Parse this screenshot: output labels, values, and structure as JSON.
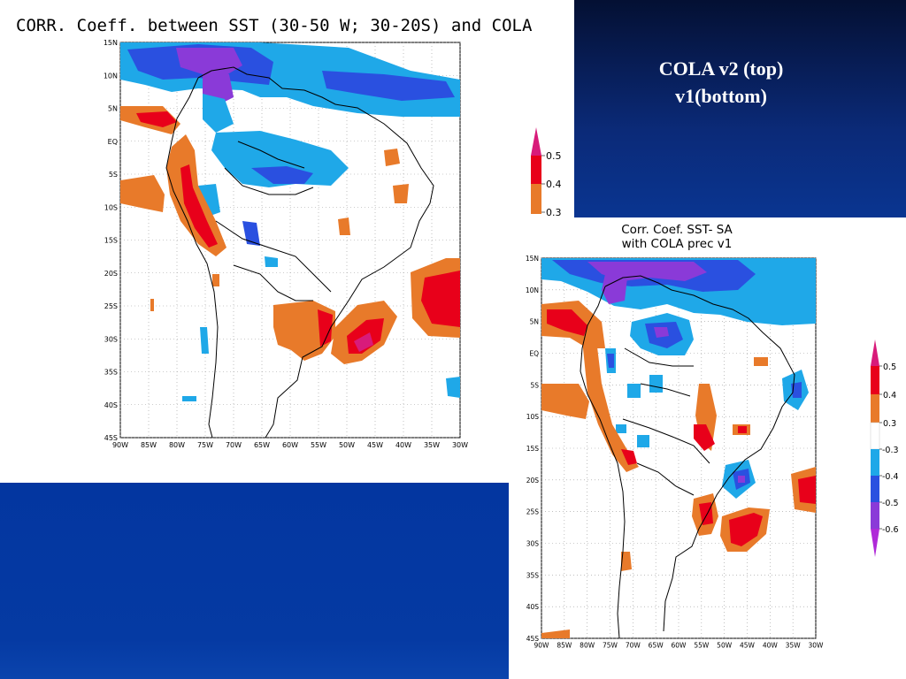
{
  "slide": {
    "title_line1": "COLA v2 (top)",
    "title_line2": "v1(bottom)"
  },
  "colors": {
    "dark_blue_top": "#0b2a78",
    "dark_blue_bottom": "#053aa3",
    "magenta": "#d81b7a",
    "red": "#e8001a",
    "orange": "#e87a2a",
    "light_blue": "#1fa8e8",
    "blue": "#2a50e0",
    "purple": "#8a3ad8"
  },
  "map1": {
    "title": "CORR. Coeff. between SST (30-50 W; 30-20S) and COLA",
    "lat_labels": [
      "15N",
      "10N",
      "5N",
      "EQ",
      "5S",
      "10S",
      "15S",
      "20S",
      "25S",
      "30S",
      "35S",
      "40S",
      "45S"
    ],
    "lon_labels": [
      "90W",
      "85W",
      "80W",
      "75W",
      "70W",
      "65W",
      "60W",
      "55W",
      "50W",
      "45W",
      "40W",
      "35W",
      "30W"
    ],
    "legend_labels": [
      "0.5",
      "0.4",
      "0.3"
    ]
  },
  "map2": {
    "title_line1": "Corr. Coef.  SST- SA",
    "title_line2": "with COLA prec v1",
    "lat_labels": [
      "15N",
      "10N",
      "5N",
      "EQ",
      "5S",
      "10S",
      "15S",
      "20S",
      "25S",
      "30S",
      "35S",
      "40S",
      "45S"
    ],
    "lon_labels": [
      "90W",
      "85W",
      "80W",
      "75W",
      "70W",
      "65W",
      "60W",
      "55W",
      "50W",
      "45W",
      "40W",
      "35W",
      "30W"
    ],
    "legend_labels": [
      "0.5",
      "0.4",
      "0.3",
      "-0.3",
      "-0.4",
      "-0.5",
      "-0.6"
    ]
  }
}
